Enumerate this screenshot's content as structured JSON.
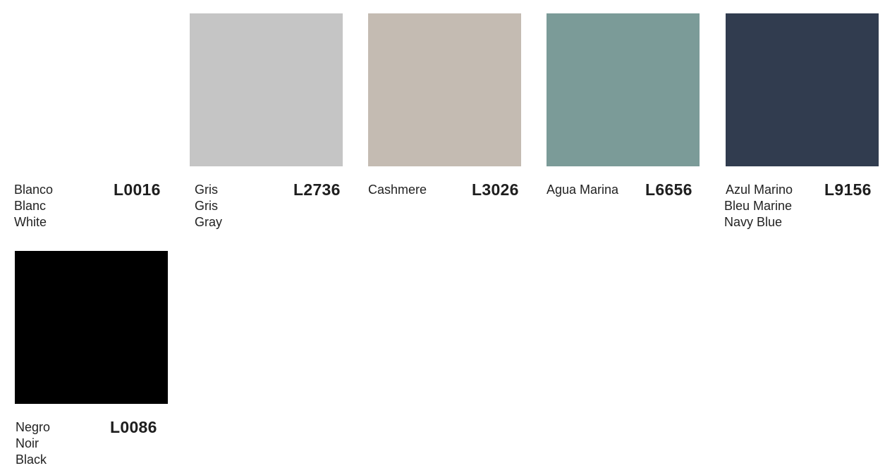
{
  "swatches": [
    {
      "code": "L0016",
      "names": [
        "Blanco",
        "Blanc",
        "White"
      ],
      "color": "#ffffff"
    },
    {
      "code": "L2736",
      "names": [
        "Gris",
        "Gris",
        "Gray"
      ],
      "color": "#c5c5c5"
    },
    {
      "code": "L3026",
      "names": [
        "Cashmere"
      ],
      "color": "#c4bbb2"
    },
    {
      "code": "L6656",
      "names": [
        "Agua Marina"
      ],
      "color": "#7b9b98"
    },
    {
      "code": "L9156",
      "names": [
        "Azul Marino",
        "Bleu Marine",
        "Navy Blue"
      ],
      "color": "#313c4f"
    },
    {
      "code": "L0086",
      "names": [
        "Negro",
        "Noir",
        "Black"
      ],
      "color": "#000000"
    }
  ]
}
